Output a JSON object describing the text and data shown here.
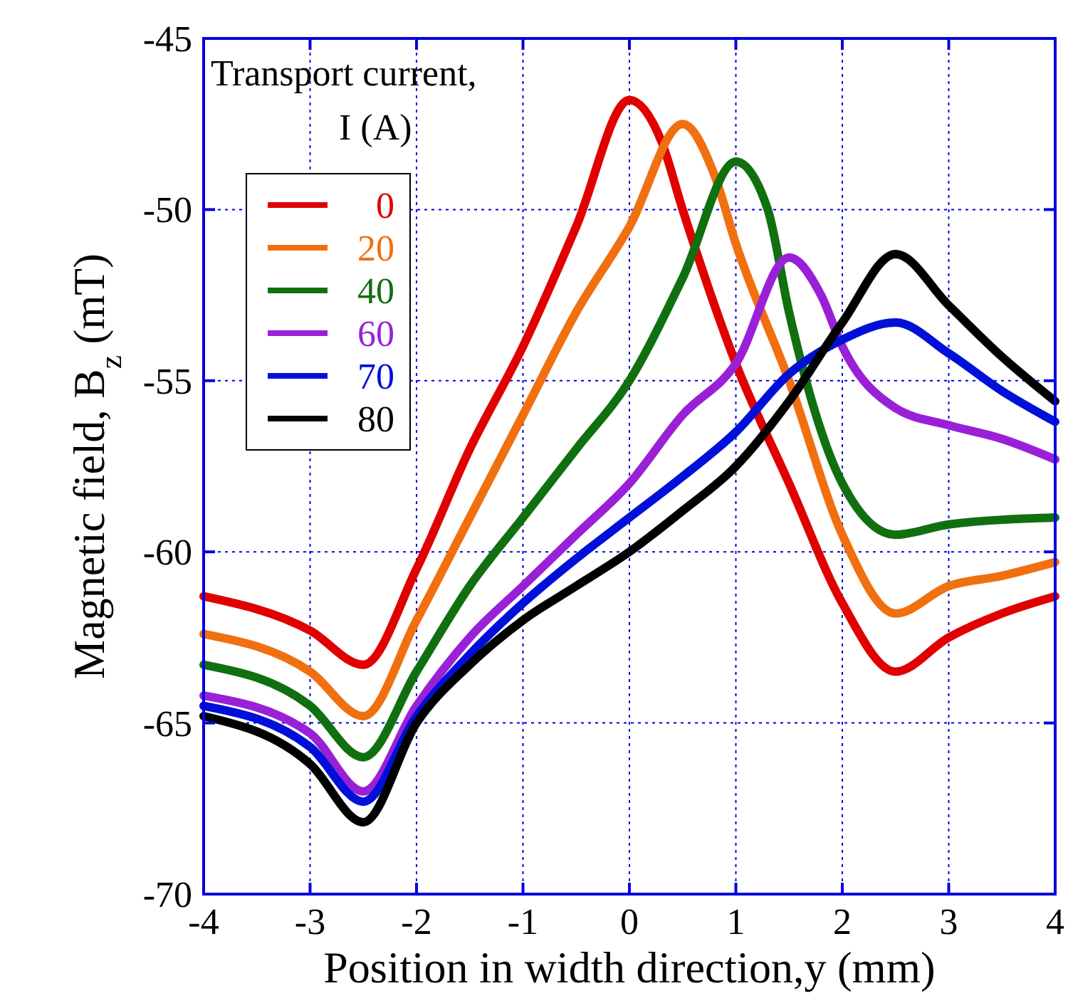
{
  "chart_data": {
    "type": "line",
    "xlabel": "Position in width direction,y (mm)",
    "ylabel": "Magnetic field, B$_{z}$ (mT)",
    "legend_title": "Transport current,\nI (A)",
    "xlim": [
      -4,
      4
    ],
    "xticks": [
      -4,
      -3,
      -2,
      -1,
      0,
      1,
      2,
      3,
      4
    ],
    "ylim": [
      -70,
      -45
    ],
    "yticks": [
      -70,
      -65,
      -60,
      -55,
      -50,
      -45
    ],
    "grid": true,
    "legend": "top left",
    "line_style": "solid",
    "marker": "none",
    "series": [
      {
        "name": "0",
        "color": "#e00000",
        "x": [
          -4,
          -3,
          -2.5,
          -2,
          -1.5,
          -1,
          -0.5,
          0,
          0.3,
          0.5,
          1,
          1.5,
          2,
          2.5,
          3,
          3.5,
          4
        ],
        "values": [
          -61.3,
          -62.3,
          -63.3,
          -60.5,
          -57,
          -54,
          -50.5,
          -46.8,
          -48,
          -50,
          -54.5,
          -58,
          -61.5,
          -63.5,
          -62.5,
          -61.8,
          -61.3
        ]
      },
      {
        "name": "20",
        "color": "#f07010",
        "x": [
          -4,
          -3,
          -2.5,
          -2,
          -1.5,
          -1,
          -0.5,
          0,
          0.5,
          0.8,
          1,
          1.5,
          2,
          2.5,
          3,
          3.5,
          4
        ],
        "values": [
          -62.4,
          -63.5,
          -64.8,
          -62,
          -59,
          -56,
          -53,
          -50.5,
          -47.5,
          -49,
          -51,
          -55,
          -59.5,
          -61.8,
          -61,
          -60.7,
          -60.3
        ]
      },
      {
        "name": "40",
        "color": "#107010",
        "x": [
          -4,
          -3,
          -2.5,
          -2,
          -1.5,
          -1,
          -0.5,
          0,
          0.5,
          1,
          1.3,
          1.5,
          2,
          2.5,
          3,
          4
        ],
        "values": [
          -63.3,
          -64.5,
          -66,
          -63.5,
          -61,
          -59,
          -57,
          -55,
          -52,
          -48.6,
          -50,
          -53,
          -58,
          -59.5,
          -59.2,
          -59
        ]
      },
      {
        "name": "60",
        "color": "#9a20d8",
        "x": [
          -4,
          -3,
          -2.5,
          -2,
          -1.5,
          -1,
          -0.5,
          0,
          0.5,
          1,
          1.5,
          1.8,
          2,
          2.5,
          3,
          3.5,
          4
        ],
        "values": [
          -64.2,
          -65.3,
          -67,
          -64.5,
          -62.5,
          -61,
          -59.5,
          -58,
          -56,
          -54.5,
          -51.4,
          -52.5,
          -54,
          -55.8,
          -56.3,
          -56.7,
          -57.3
        ]
      },
      {
        "name": "70",
        "color": "#0010d8",
        "x": [
          -4,
          -3,
          -2.5,
          -2,
          -1.5,
          -1,
          -0.5,
          0,
          0.5,
          1,
          1.5,
          2,
          2.5,
          3,
          3.5,
          4
        ],
        "values": [
          -64.5,
          -65.7,
          -67.3,
          -64.8,
          -63,
          -61.5,
          -60.2,
          -59,
          -57.8,
          -56.5,
          -54.8,
          -53.8,
          -53.3,
          -54.2,
          -55.3,
          -56.2
        ]
      },
      {
        "name": "80",
        "color": "#000000",
        "x": [
          -4,
          -3,
          -2.5,
          -2,
          -1.5,
          -1,
          -0.5,
          0,
          0.5,
          1,
          1.5,
          2,
          2.5,
          3,
          3.5,
          4
        ],
        "values": [
          -64.8,
          -66.2,
          -67.9,
          -65,
          -63.3,
          -62,
          -61,
          -60,
          -58.8,
          -57.5,
          -55.6,
          -53.3,
          -51.3,
          -52.8,
          -54.3,
          -55.6
        ]
      }
    ]
  }
}
